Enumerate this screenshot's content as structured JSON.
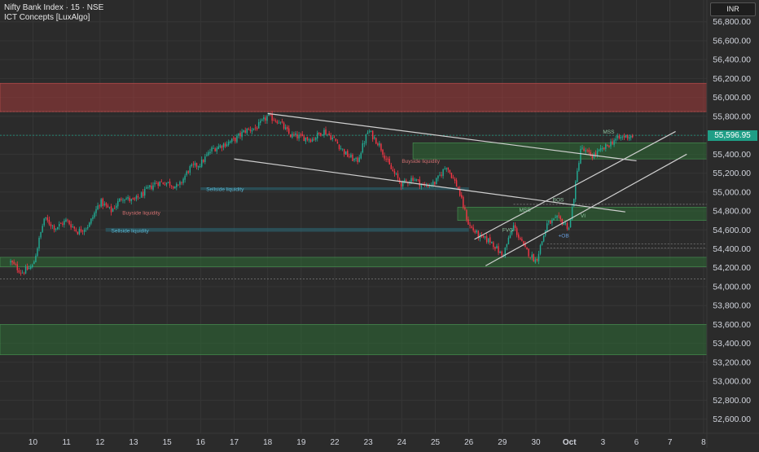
{
  "header": {
    "title": "Nifty Bank Index · 15 · NSE",
    "indicator": "ICT Concepts [LuxAlgo]"
  },
  "toolbar": {
    "currency": "INR"
  },
  "price_scale": {
    "current_price_label": "55,596.95",
    "current_price": 55596.95,
    "accent_color": "#1f9e86"
  },
  "chart_data": {
    "type": "candlestick",
    "title": "Nifty Bank Index · 15 · NSE",
    "ylim": [
      52450,
      57030
    ],
    "y_ticks": [
      52600,
      52800,
      53000,
      53200,
      53400,
      53600,
      53800,
      54000,
      54200,
      54400,
      54600,
      54800,
      55000,
      55200,
      55400,
      55600,
      55800,
      56000,
      56200,
      56400,
      56600,
      56800
    ],
    "y_tick_labels": [
      "52,600.00",
      "52,800.00",
      "53,000.00",
      "53,200.00",
      "53,400.00",
      "53,600.00",
      "53,800.00",
      "54,000.00",
      "54,200.00",
      "54,400.00",
      "54,600.00",
      "54,800.00",
      "55,000.00",
      "55,200.00",
      "55,400.00",
      "55,600.00",
      "55,800.00",
      "56,000.00",
      "56,200.00",
      "56,400.00",
      "56,600.00",
      "56,800.00"
    ],
    "x_ticks": [
      {
        "label": "10",
        "t": 4
      },
      {
        "label": "11",
        "t": 10
      },
      {
        "label": "12",
        "t": 16
      },
      {
        "label": "13",
        "t": 22
      },
      {
        "label": "15",
        "t": 28
      },
      {
        "label": "16",
        "t": 34
      },
      {
        "label": "17",
        "t": 40
      },
      {
        "label": "18",
        "t": 46
      },
      {
        "label": "19",
        "t": 52
      },
      {
        "label": "22",
        "t": 58
      },
      {
        "label": "23",
        "t": 64
      },
      {
        "label": "24",
        "t": 70
      },
      {
        "label": "25",
        "t": 76
      },
      {
        "label": "26",
        "t": 82
      },
      {
        "label": "29",
        "t": 88
      },
      {
        "label": "30",
        "t": 94
      },
      {
        "label": "Oct",
        "t": 100
      },
      {
        "label": "3",
        "t": 106
      },
      {
        "label": "6",
        "t": 112
      },
      {
        "label": "7",
        "t": 118
      },
      {
        "label": "8",
        "t": 124
      }
    ],
    "xlim": [
      -1.9,
      124.6
    ],
    "waypoints": [
      [
        0,
        54260
      ],
      [
        2,
        54150
      ],
      [
        4,
        54220
      ],
      [
        6,
        54720
      ],
      [
        8,
        54620
      ],
      [
        10,
        54700
      ],
      [
        12,
        54580
      ],
      [
        14,
        54650
      ],
      [
        16,
        54900
      ],
      [
        18,
        54800
      ],
      [
        20,
        54950
      ],
      [
        22,
        54900
      ],
      [
        24,
        55000
      ],
      [
        26,
        55100
      ],
      [
        28,
        55100
      ],
      [
        30,
        55050
      ],
      [
        32,
        55250
      ],
      [
        34,
        55300
      ],
      [
        36,
        55450
      ],
      [
        38,
        55500
      ],
      [
        40,
        55550
      ],
      [
        42,
        55650
      ],
      [
        44,
        55680
      ],
      [
        46,
        55800
      ],
      [
        48,
        55750
      ],
      [
        50,
        55600
      ],
      [
        52,
        55580
      ],
      [
        54,
        55560
      ],
      [
        56,
        55650
      ],
      [
        58,
        55550
      ],
      [
        60,
        55400
      ],
      [
        62,
        55320
      ],
      [
        64,
        55650
      ],
      [
        66,
        55500
      ],
      [
        68,
        55250
      ],
      [
        70,
        55080
      ],
      [
        72,
        55150
      ],
      [
        74,
        55060
      ],
      [
        76,
        55100
      ],
      [
        78,
        55280
      ],
      [
        80,
        55050
      ],
      [
        82,
        54650
      ],
      [
        84,
        54520
      ],
      [
        86,
        54480
      ],
      [
        88,
        54320
      ],
      [
        90,
        54640
      ],
      [
        92,
        54400
      ],
      [
        94,
        54270
      ],
      [
        96,
        54660
      ],
      [
        98,
        54720
      ],
      [
        100,
        54620
      ],
      [
        102,
        55460
      ],
      [
        104,
        55380
      ],
      [
        106,
        55450
      ],
      [
        108,
        55550
      ],
      [
        110,
        55590
      ],
      [
        111.5,
        55597
      ]
    ],
    "zones": [
      {
        "kind": "supply",
        "y1": 56150,
        "y2": 55850,
        "x1": -1.9,
        "x2": 124.6
      },
      {
        "kind": "demand",
        "y1": 55520,
        "y2": 55350,
        "x1": 72,
        "x2": 124.6
      },
      {
        "kind": "demand",
        "y1": 54840,
        "y2": 54700,
        "x1": 80,
        "x2": 124.6
      },
      {
        "kind": "demand",
        "y1": 54310,
        "y2": 54210,
        "x1": -1.9,
        "x2": 124.6
      },
      {
        "kind": "demand",
        "y1": 53600,
        "y2": 53280,
        "x1": -1.9,
        "x2": 124.6
      },
      {
        "kind": "liquidity",
        "y1": 55050,
        "y2": 55020,
        "x1": 34,
        "x2": 82
      },
      {
        "kind": "liquidity",
        "y1": 54620,
        "y2": 54580,
        "x1": 17,
        "x2": 82
      }
    ],
    "trendlines": [
      {
        "x1": 46,
        "y1": 55830,
        "x2": 112,
        "y2": 55330
      },
      {
        "x1": 40,
        "y1": 55350,
        "x2": 110,
        "y2": 54790
      },
      {
        "x1": 83,
        "y1": 54500,
        "x2": 119,
        "y2": 55640
      },
      {
        "x1": 85,
        "y1": 54220,
        "x2": 121,
        "y2": 55400
      }
    ],
    "hlines": [
      {
        "y": 55850,
        "x1": -1.9,
        "x2": 124.6,
        "color": "#c45050"
      },
      {
        "y": 54080,
        "x1": -1.9,
        "x2": 124.6,
        "color": "#8a8a8a"
      },
      {
        "y": 54870,
        "x1": 90,
        "x2": 124.6,
        "color": "#8a8a8a"
      },
      {
        "y": 54450,
        "x1": 96,
        "x2": 124.6,
        "color": "#8a8a8a"
      },
      {
        "y": 54410,
        "x1": 96,
        "x2": 124.6,
        "color": "#8a8a8a"
      },
      {
        "y": 55600,
        "x1": -1.9,
        "x2": 124.6,
        "color": "#1f9e86"
      }
    ],
    "annotations": [
      {
        "text": "Sellside liquidity",
        "t": 35,
        "y": 55010,
        "color": "#5ab4d0"
      },
      {
        "text": "Sellside liquidity",
        "t": 18,
        "y": 54570,
        "color": "#5ab4d0"
      },
      {
        "text": "Buyside liquidity",
        "t": 70,
        "y": 55310,
        "color": "#d07070"
      },
      {
        "text": "Buyside liquidity",
        "t": 20,
        "y": 54760,
        "color": "#d07070"
      },
      {
        "text": "BOS",
        "t": 97,
        "y": 54900,
        "color": "#8ec5a0"
      },
      {
        "text": "MSS",
        "t": 91,
        "y": 54790,
        "color": "#8ec5a0"
      },
      {
        "text": "VI",
        "t": 102,
        "y": 54730,
        "color": "#8ec5a0"
      },
      {
        "text": "FVG",
        "t": 88,
        "y": 54580,
        "color": "#8ec5a0"
      },
      {
        "text": "+OB",
        "t": 98,
        "y": 54520,
        "color": "#6aa0e0"
      },
      {
        "text": "MSS",
        "t": 106,
        "y": 55620,
        "color": "#8ec5a0"
      }
    ],
    "colors": {
      "up": "#22ab94",
      "down": "#f23645",
      "supply": "#a33a3a",
      "demand": "#2e6b35",
      "liquidity": "#2a6a78",
      "trendline": "#cfcfcf",
      "grid": "#363636",
      "axis_text": "#d1d4dc"
    }
  }
}
